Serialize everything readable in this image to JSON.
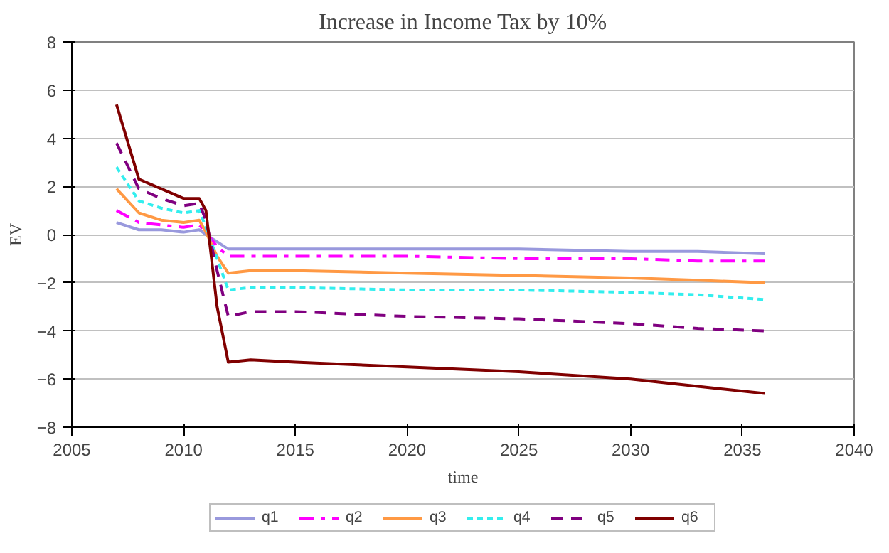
{
  "chart_data": {
    "type": "line",
    "title": "Increase in Income Tax by 10%",
    "xlabel": "time",
    "ylabel": "EV",
    "x": [
      2007,
      2008,
      2009,
      2010,
      2010.7,
      2011,
      2011.5,
      2012,
      2013,
      2015,
      2020,
      2025,
      2030,
      2033,
      2036
    ],
    "series": [
      {
        "name": "q1",
        "color": "#9999dd",
        "line_style": "solid",
        "values": [
          0.5,
          0.2,
          0.2,
          0.1,
          0.2,
          0.0,
          -0.3,
          -0.6,
          -0.6,
          -0.6,
          -0.6,
          -0.6,
          -0.7,
          -0.7,
          -0.8
        ]
      },
      {
        "name": "q2",
        "color": "#ff00ff",
        "line_style": "dashdot",
        "values": [
          1.0,
          0.5,
          0.4,
          0.3,
          0.4,
          0.1,
          -0.5,
          -0.9,
          -0.9,
          -0.9,
          -0.9,
          -1.0,
          -1.0,
          -1.1,
          -1.1
        ]
      },
      {
        "name": "q3",
        "color": "#ff9944",
        "line_style": "solid",
        "values": [
          1.9,
          0.9,
          0.6,
          0.5,
          0.6,
          0.1,
          -0.9,
          -1.6,
          -1.5,
          -1.5,
          -1.6,
          -1.7,
          -1.8,
          -1.9,
          -2.0
        ]
      },
      {
        "name": "q4",
        "color": "#33eeee",
        "line_style": "dotted",
        "values": [
          2.8,
          1.4,
          1.1,
          0.9,
          1.0,
          0.3,
          -1.0,
          -2.3,
          -2.2,
          -2.2,
          -2.3,
          -2.3,
          -2.4,
          -2.5,
          -2.7
        ]
      },
      {
        "name": "q5",
        "color": "#800080",
        "line_style": "dashed",
        "values": [
          3.8,
          1.9,
          1.5,
          1.2,
          1.3,
          0.6,
          -1.5,
          -3.4,
          -3.2,
          -3.2,
          -3.4,
          -3.5,
          -3.7,
          -3.9,
          -4.0
        ]
      },
      {
        "name": "q6",
        "color": "#800000",
        "line_style": "solid",
        "values": [
          5.4,
          2.3,
          1.9,
          1.5,
          1.5,
          1.0,
          -3.0,
          -5.3,
          -5.2,
          -5.3,
          -5.5,
          -5.7,
          -6.0,
          -6.3,
          -6.6
        ]
      }
    ],
    "xlim": [
      2005,
      2040
    ],
    "xticks": [
      2005,
      2010,
      2015,
      2020,
      2025,
      2030,
      2035,
      2040
    ],
    "ylim": [
      -8,
      8
    ],
    "yticks": [
      -8,
      -6,
      -4,
      -2,
      0,
      2,
      4,
      6,
      8
    ],
    "grid": "y",
    "legend": "bottom",
    "marker": "none"
  }
}
